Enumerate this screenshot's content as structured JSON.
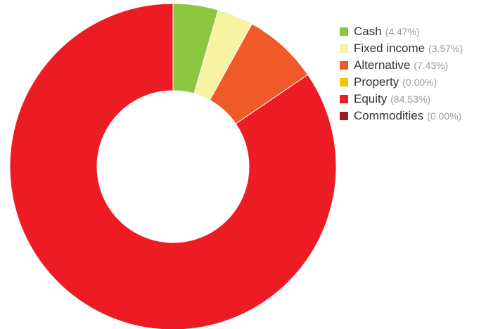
{
  "chart_data": {
    "type": "pie",
    "categories": [
      "Cash",
      "Fixed income",
      "Alternative",
      "Property",
      "Equity",
      "Commodities"
    ],
    "values": [
      4.47,
      3.57,
      7.43,
      0.0,
      84.53,
      0.0
    ],
    "percent_labels": [
      "(4.47%)",
      "(3.57%)",
      "(7.43%)",
      "(0.00%)",
      "(84.53%)",
      "(0.00%)"
    ],
    "colors": [
      "#8dc63f",
      "#f7f3a2",
      "#f05a28",
      "#f5c400",
      "#ed1c24",
      "#9e1c1f"
    ],
    "donut": true,
    "legend_position": "top-right",
    "title": ""
  }
}
